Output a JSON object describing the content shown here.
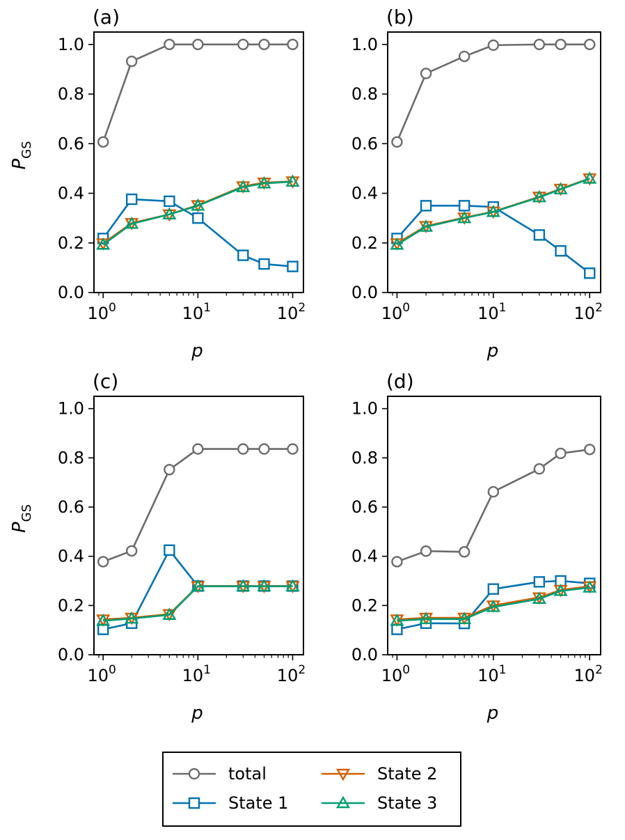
{
  "chart_data": [
    {
      "type": "line",
      "panel_label": "(a)",
      "xscale": "log",
      "xlim": [
        0.8,
        130
      ],
      "ylim": [
        0.0,
        1.05
      ],
      "xlabel": "p",
      "ylabel": "P",
      "ylabel_sub": "GS",
      "x": [
        1,
        2,
        5,
        10,
        30,
        50,
        100
      ],
      "series": [
        {
          "name": "total",
          "values": [
            0.607,
            0.932,
            1.0,
            1.0,
            1.0,
            1.0,
            1.0
          ]
        },
        {
          "name": "State 1",
          "values": [
            0.218,
            0.376,
            0.368,
            0.3,
            0.15,
            0.115,
            0.105
          ]
        },
        {
          "name": "State 2",
          "values": [
            0.198,
            0.28,
            0.315,
            0.352,
            0.428,
            0.443,
            0.448
          ]
        },
        {
          "name": "State 3",
          "values": [
            0.193,
            0.277,
            0.315,
            0.35,
            0.425,
            0.44,
            0.447
          ]
        }
      ]
    },
    {
      "type": "line",
      "panel_label": "(b)",
      "xscale": "log",
      "xlim": [
        0.8,
        130
      ],
      "ylim": [
        0.0,
        1.05
      ],
      "xlabel": "p",
      "ylabel": "",
      "ylabel_sub": "",
      "x": [
        1,
        2,
        5,
        10,
        30,
        50,
        100
      ],
      "series": [
        {
          "name": "total",
          "values": [
            0.607,
            0.883,
            0.952,
            0.997,
            1.0,
            1.0,
            1.0
          ]
        },
        {
          "name": "State 1",
          "values": [
            0.218,
            0.35,
            0.35,
            0.345,
            0.232,
            0.168,
            0.078
          ]
        },
        {
          "name": "State 2",
          "values": [
            0.198,
            0.268,
            0.302,
            0.326,
            0.386,
            0.418,
            0.46
          ]
        },
        {
          "name": "State 3",
          "values": [
            0.193,
            0.265,
            0.3,
            0.325,
            0.384,
            0.416,
            0.459
          ]
        }
      ]
    },
    {
      "type": "line",
      "panel_label": "(c)",
      "xscale": "log",
      "xlim": [
        0.8,
        130
      ],
      "ylim": [
        0.0,
        1.05
      ],
      "xlabel": "p",
      "ylabel": "P",
      "ylabel_sub": "GS",
      "x": [
        1,
        2,
        5,
        10,
        30,
        50,
        100
      ],
      "series": [
        {
          "name": "total",
          "values": [
            0.378,
            0.422,
            0.752,
            0.836,
            0.836,
            0.836,
            0.836
          ]
        },
        {
          "name": "State 1",
          "values": [
            0.103,
            0.128,
            0.425,
            0.279,
            0.279,
            0.279,
            0.279
          ]
        },
        {
          "name": "State 2",
          "values": [
            0.143,
            0.15,
            0.165,
            0.279,
            0.279,
            0.279,
            0.279
          ]
        },
        {
          "name": "State 3",
          "values": [
            0.138,
            0.147,
            0.162,
            0.278,
            0.278,
            0.278,
            0.278
          ]
        }
      ]
    },
    {
      "type": "line",
      "panel_label": "(d)",
      "xscale": "log",
      "xlim": [
        0.8,
        130
      ],
      "ylim": [
        0.0,
        1.05
      ],
      "xlabel": "p",
      "ylabel": "",
      "ylabel_sub": "",
      "x": [
        1,
        2,
        5,
        10,
        30,
        50,
        100
      ],
      "series": [
        {
          "name": "total",
          "values": [
            0.378,
            0.421,
            0.418,
            0.662,
            0.755,
            0.818,
            0.834
          ]
        },
        {
          "name": "State 1",
          "values": [
            0.103,
            0.128,
            0.127,
            0.267,
            0.296,
            0.3,
            0.29
          ]
        },
        {
          "name": "State 2",
          "values": [
            0.143,
            0.15,
            0.15,
            0.2,
            0.233,
            0.263,
            0.278
          ]
        },
        {
          "name": "State 3",
          "values": [
            0.138,
            0.145,
            0.145,
            0.194,
            0.227,
            0.259,
            0.273
          ]
        }
      ]
    }
  ],
  "axes": {
    "yticks": [
      "0.0",
      "0.2",
      "0.4",
      "0.6",
      "0.8",
      "1.0"
    ],
    "xticks": [
      {
        "value": 1,
        "base": "10",
        "exp": "0"
      },
      {
        "value": 10,
        "base": "10",
        "exp": "1"
      },
      {
        "value": 100,
        "base": "10",
        "exp": "2"
      }
    ]
  },
  "legend": {
    "placement": "bottom-center",
    "entries": [
      {
        "label": "total",
        "marker": "circle",
        "color": "#6b6b6b"
      },
      {
        "label": "State 2",
        "marker": "triangle-down",
        "color": "#d55e00"
      },
      {
        "label": "State 1",
        "marker": "square",
        "color": "#0072b2"
      },
      {
        "label": "State 3",
        "marker": "triangle-up",
        "color": "#009e73"
      }
    ]
  },
  "colors": {
    "total": "#6b6b6b",
    "State 1": "#0072b2",
    "State 2": "#d55e00",
    "State 3": "#009e73"
  }
}
